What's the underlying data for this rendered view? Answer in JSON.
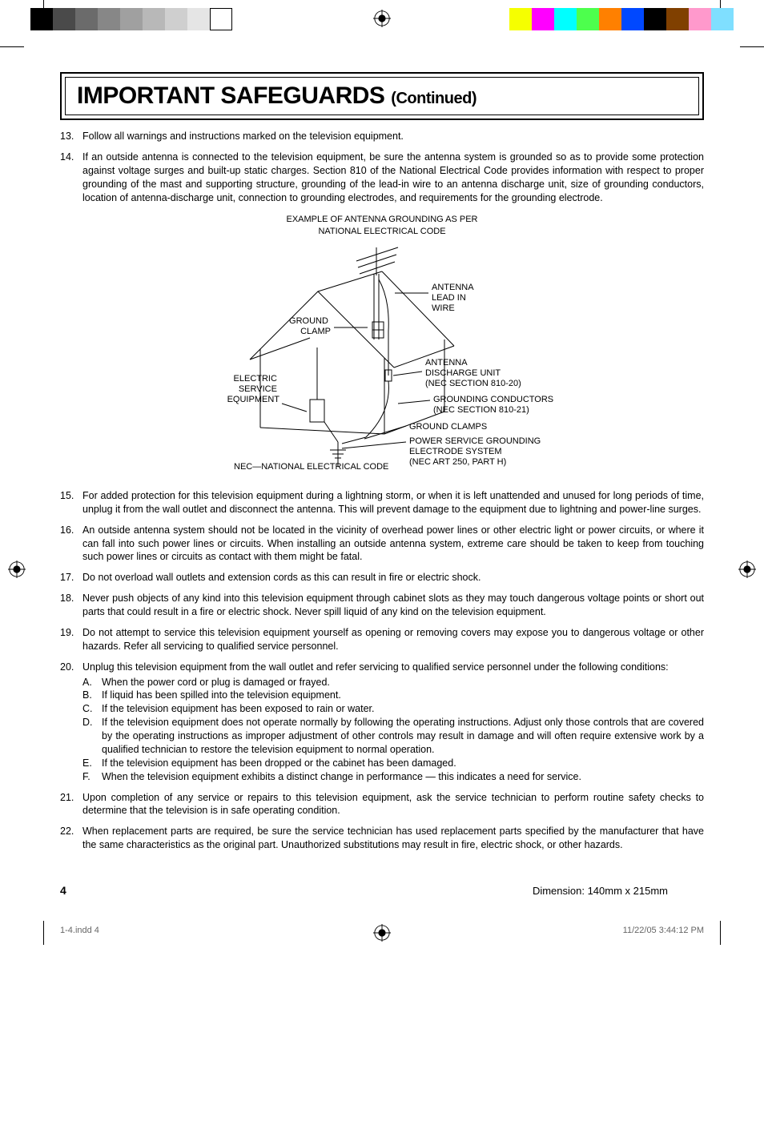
{
  "printer_marks": {
    "left_strip_colors": [
      "#000000",
      "#4a4a4a",
      "#6b6b6b",
      "#878787",
      "#a0a0a0",
      "#b8b8b8",
      "#cfcfcf",
      "#e5e5e5",
      "#ffffff"
    ],
    "right_strip_colors": [
      "#f6ff00",
      "#ff00ff",
      "#00ffff",
      "#4dff4d",
      "#ff8000",
      "#0048ff",
      "#000000",
      "#804000",
      "#ff99cc",
      "#7fdfff"
    ]
  },
  "title": {
    "main": "IMPORTANT SAFEGUARDS",
    "continued": "(Continued)"
  },
  "items": [
    {
      "n": "13.",
      "text": "Follow all warnings and instructions marked on the television equipment."
    },
    {
      "n": "14.",
      "text": "If an outside antenna is connected to the television equipment, be sure the antenna system is grounded   so as to provide some protection against voltage surges and built-up static charges. Section 810 of the National Electrical Code provides information with respect to proper grounding of the mast and           supporting structure, grounding of the lead-in wire to an antenna discharge unit, size of grounding   conductors, location of antenna-discharge unit, connection to grounding electrodes, and requirements           for the grounding electrode."
    },
    {
      "n": "15.",
      "text": "For added protection for this television equipment during a lightning storm, or when it is left unattended and unused for long periods of time, unplug it from the wall outlet and disconnect the antenna. This will prevent damage to the equipment due to lightning and power-line surges."
    },
    {
      "n": "16.",
      "text": "An outside antenna system should not be located in the vicinity of overhead power lines or other electric light or power circuits, or where it can fall into such power lines or circuits. When installing an outside antenna system, extreme care should be taken to keep from touching such power lines or circuits as contact with them might be fatal."
    },
    {
      "n": "17.",
      "text": "Do not overload wall outlets and extension cords as this can result in fire or electric shock."
    },
    {
      "n": "18.",
      "text": "Never push objects of any kind into this television equipment through cabinet slots as they may touch dangerous voltage points or short out parts that could result in a fire or electric shock. Never spill liquid of any kind on the television equipment."
    },
    {
      "n": "19.",
      "text": "Do not attempt to service this television equipment yourself as opening or removing covers may expose you to dangerous voltage or other hazards. Refer all servicing to qualified service personnel."
    },
    {
      "n": "20.",
      "text": "Unplug this television equipment from the wall outlet and refer servicing to qualified service personnel under the following conditions:"
    },
    {
      "n": "21.",
      "text": "Upon completion of any service or repairs to this television equipment, ask the service technician to perform routine safety checks to determine that the television is in safe operating condition."
    },
    {
      "n": "22.",
      "text": "When replacement parts are required, be sure the service technician has used replacement parts specified by the manufacturer that have the same characteristics as the original part. Unauthorized substitutions may result in fire, electric shock, or other hazards."
    }
  ],
  "sub_items_20": [
    {
      "l": "A.",
      "text": "When the power cord or plug is damaged or frayed."
    },
    {
      "l": "B.",
      "text": "If liquid has been spilled into the television equipment."
    },
    {
      "l": "C.",
      "text": "If the television equipment has been exposed to rain or water."
    },
    {
      "l": "D.",
      "text": "If the television equipment does not operate normally by following the operating instructions. Adjust only those controls that are covered by the operating instructions as improper adjustment of other controls may result in damage and will often require extensive work by a qualified technician to           restore the television equipment to normal operation."
    },
    {
      "l": "E.",
      "text": "If the television equipment has been dropped or the cabinet has been damaged."
    },
    {
      "l": "F.",
      "text": "When the television equipment exhibits a distinct change in performance — this indicates a need for service."
    }
  ],
  "diagram": {
    "caption_line1": "EXAMPLE OF ANTENNA GROUNDING AS PER",
    "caption_line2": "NATIONAL ELECTRICAL CODE",
    "labels": {
      "antenna_lead": "ANTENNA\nLEAD IN\nWIRE",
      "ground_clamp": "GROUND\nCLAMP",
      "electric_service": "ELECTRIC\nSERVICE\nEQUIPMENT",
      "discharge_unit": "ANTENNA\nDISCHARGE UNIT\n(NEC SECTION 810-20)",
      "grounding_conductors": "GROUNDING CONDUCTORS\n(NEC SECTION 810-21)",
      "ground_clamps": "GROUND CLAMPS",
      "power_service": "POWER SERVICE GROUNDING\nELECTRODE SYSTEM\n(NEC ART 250, PART H)",
      "nec_note": "NEC—NATIONAL ELECTRICAL CODE"
    }
  },
  "page_number": "4",
  "dimension_text": "Dimension: 140mm x 215mm",
  "footer": {
    "left": "1-4.indd   4",
    "right": "11/22/05   3:44:12 PM"
  }
}
